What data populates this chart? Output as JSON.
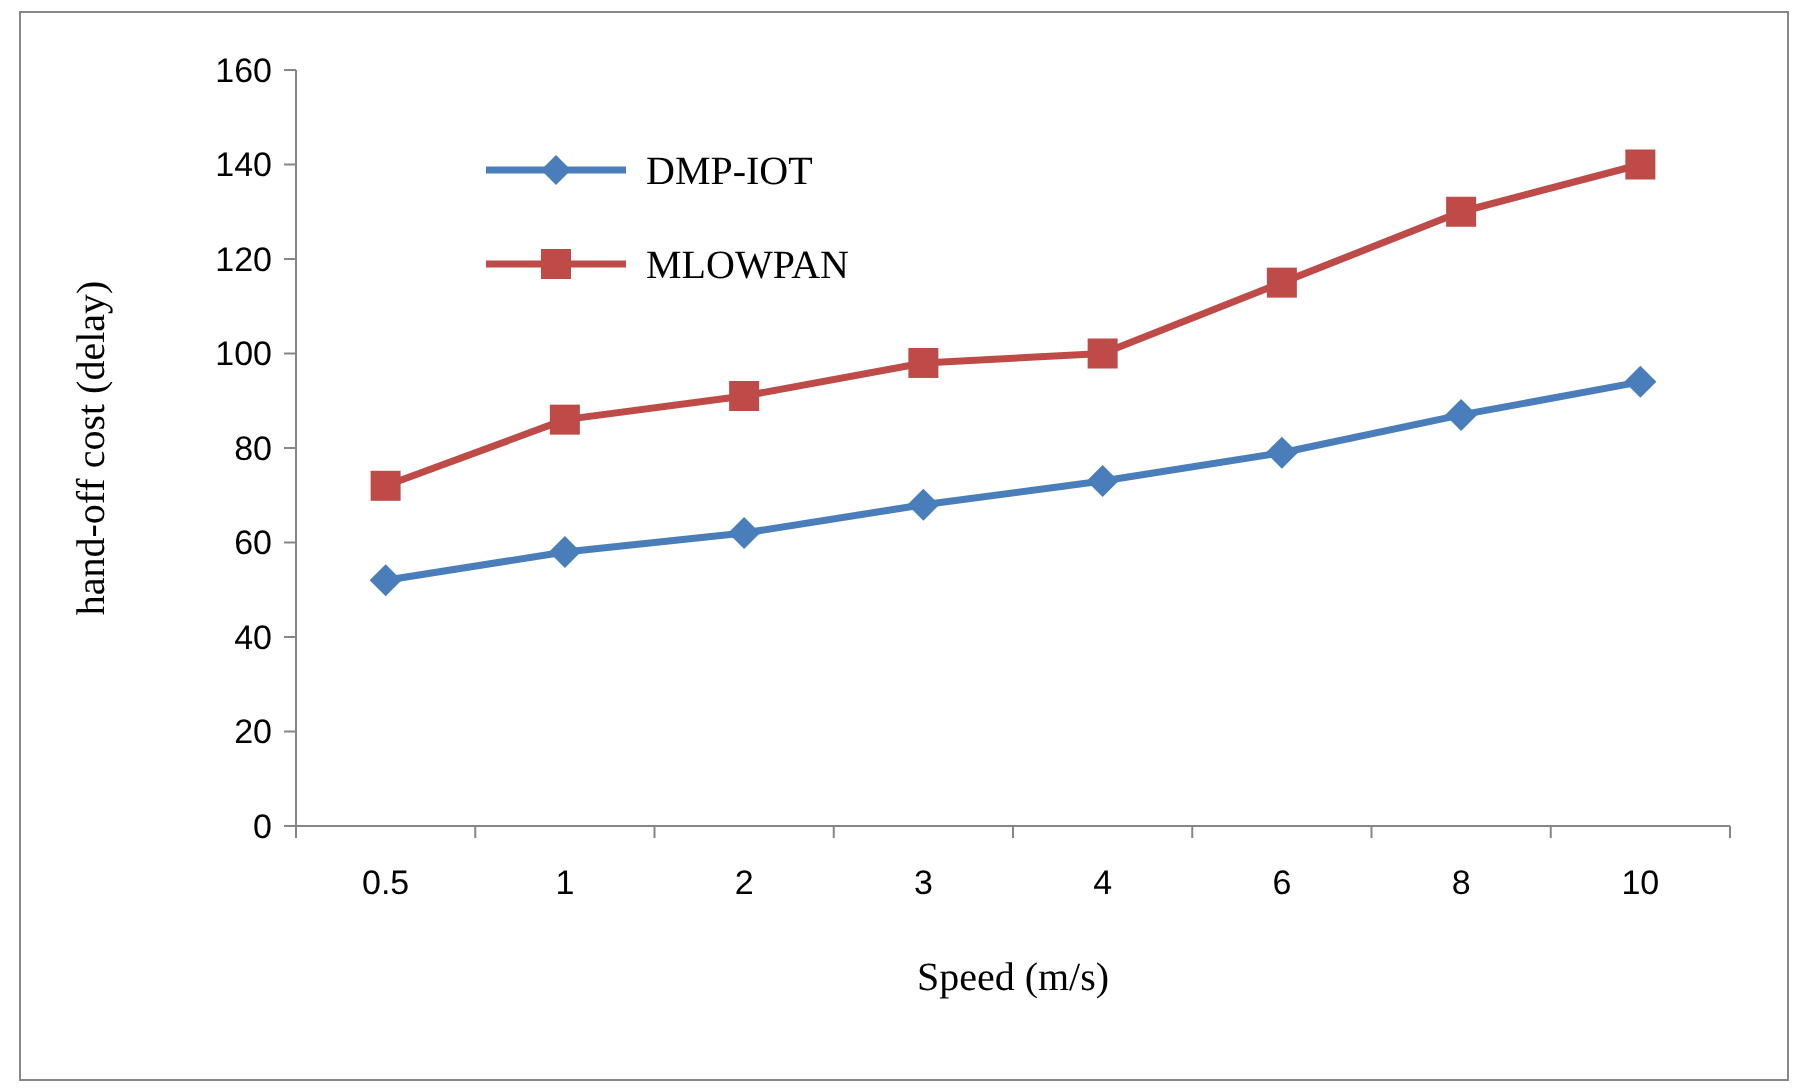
{
  "chart_data": {
    "type": "line",
    "xlabel": "Speed (m/s)",
    "ylabel": "hand-off cost (delay)",
    "categories": [
      "0.5",
      "1",
      "2",
      "3",
      "4",
      "6",
      "8",
      "10"
    ],
    "ylim": [
      0,
      160
    ],
    "yticks": [
      0,
      20,
      40,
      60,
      80,
      100,
      120,
      140,
      160
    ],
    "grid": false,
    "legend": "top left",
    "line_style": "solid",
    "series": [
      {
        "name": "DMP-IOT",
        "color": "#4a7ebb",
        "marker": "diamond",
        "values": [
          52,
          58,
          62,
          68,
          73,
          79,
          87,
          94
        ]
      },
      {
        "name": "MLOWPAN",
        "color": "#be4b48",
        "marker": "square",
        "values": [
          72,
          86,
          91,
          98,
          100,
          115,
          130,
          140
        ]
      }
    ]
  }
}
